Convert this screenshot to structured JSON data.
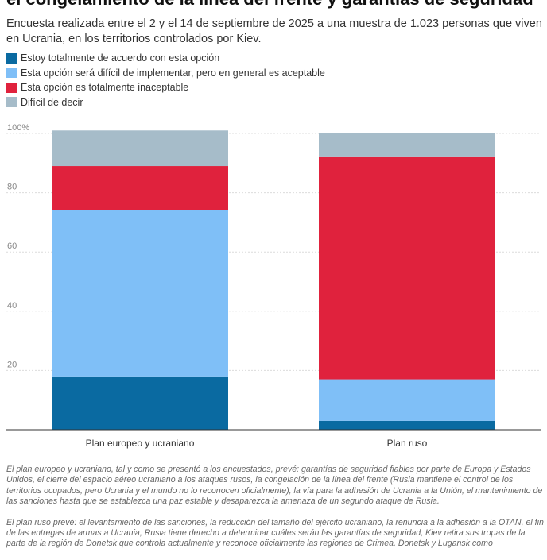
{
  "title": "el congelamiento de la línea del frente y garantías de seguridad",
  "subtitle": "Encuesta realizada entre el 2 y el 14 de septiembre de 2025 a una muestra de 1.023 personas que viven en Ucrania, en los territorios controlados por Kiev.",
  "chart_data": {
    "type": "bar",
    "stacked": true,
    "categories": [
      "Plan europeo y ucraniano",
      "Plan ruso"
    ],
    "series": [
      {
        "name": "Estoy totalmente de acuerdo con esta opción",
        "color": "#0a6aa1",
        "values": [
          18,
          3
        ]
      },
      {
        "name": "Esta opción será difícil de implementar, pero en general es aceptable",
        "color": "#7fbff7",
        "values": [
          56,
          14
        ]
      },
      {
        "name": "Esta opción es totalmente inaceptable",
        "color": "#e0223d",
        "values": [
          15,
          75
        ]
      },
      {
        "name": "Difícil de decir",
        "color": "#a6bcc9",
        "values": [
          12,
          8
        ]
      }
    ],
    "ylim": [
      0,
      100
    ],
    "yticks": [
      20,
      40,
      60,
      80,
      100
    ],
    "ytick_labels": [
      "20",
      "40",
      "60",
      "80",
      "100%"
    ],
    "grid": true,
    "legend_position": "top-left"
  },
  "notes": [
    "El plan europeo y ucraniano, tal y como se presentó a los encuestados, prevé: garantías de seguridad fiables por parte de Europa y Estados Unidos, el cierre del espacio aéreo ucraniano a los ataques rusos, la congelación de la línea del frente (Rusia mantiene el control de los territorios ocupados, pero Ucrania y el mundo no lo reconocen oficialmente), la vía para la adhesión de Ucrania a la Unión, el mantenimiento de las sanciones hasta que se establezca una paz estable y desaparezca la amenaza de un segundo ataque de Rusia.",
    "El plan ruso prevé: el levantamiento de las sanciones, la reducción del tamaño del ejército ucraniano, la renuncia a la adhesión a la OTAN, el fin de las entregas de armas a Ucrania, Rusia tiene derecho a determinar cuáles serán las garantías de seguridad, Kiev retira sus tropas de la parte de la región de Donetsk que controla actualmente y reconoce oficialmente las regiones de Crimea, Donetsk y Lugansk como"
  ]
}
